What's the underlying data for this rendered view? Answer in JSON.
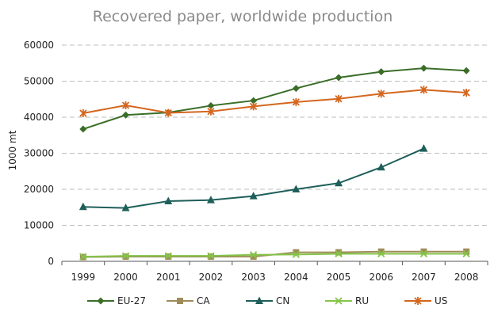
{
  "chart_data": {
    "type": "line",
    "title": "Recovered paper, worldwide production",
    "xlabel": "",
    "ylabel": "1000 mt",
    "x": [
      "1999",
      "2000",
      "2001",
      "2002",
      "2003",
      "2004",
      "2005",
      "2006",
      "2007",
      "2008"
    ],
    "y_ticks": [
      "0",
      "10000",
      "20000",
      "30000",
      "40000",
      "50000",
      "60000"
    ],
    "ylim": [
      0,
      60000
    ],
    "grid": true,
    "legend_position": "bottom",
    "series": [
      {
        "name": "EU-27",
        "color": "#3a6e28",
        "marker": "diamond",
        "values": [
          36700,
          40600,
          41300,
          43200,
          44600,
          48000,
          51000,
          52600,
          53600,
          52900
        ]
      },
      {
        "name": "CA",
        "color": "#a08c5a",
        "marker": "square",
        "values": [
          1200,
          1300,
          1300,
          1300,
          1300,
          2500,
          2500,
          2700,
          2700,
          2700
        ]
      },
      {
        "name": "CN",
        "color": "#1e5f5a",
        "marker": "triangle",
        "values": [
          15100,
          14800,
          16700,
          17000,
          18100,
          20000,
          21700,
          26100,
          31300,
          null
        ]
      },
      {
        "name": "RU",
        "color": "#84c448",
        "marker": "x",
        "values": [
          1300,
          1500,
          1500,
          1500,
          1800,
          1900,
          2100,
          2100,
          2100,
          2100
        ]
      },
      {
        "name": "US",
        "color": "#d4661e",
        "marker": "star",
        "values": [
          41100,
          43300,
          41200,
          41600,
          43000,
          44200,
          45100,
          46500,
          47600,
          46800
        ]
      }
    ]
  }
}
